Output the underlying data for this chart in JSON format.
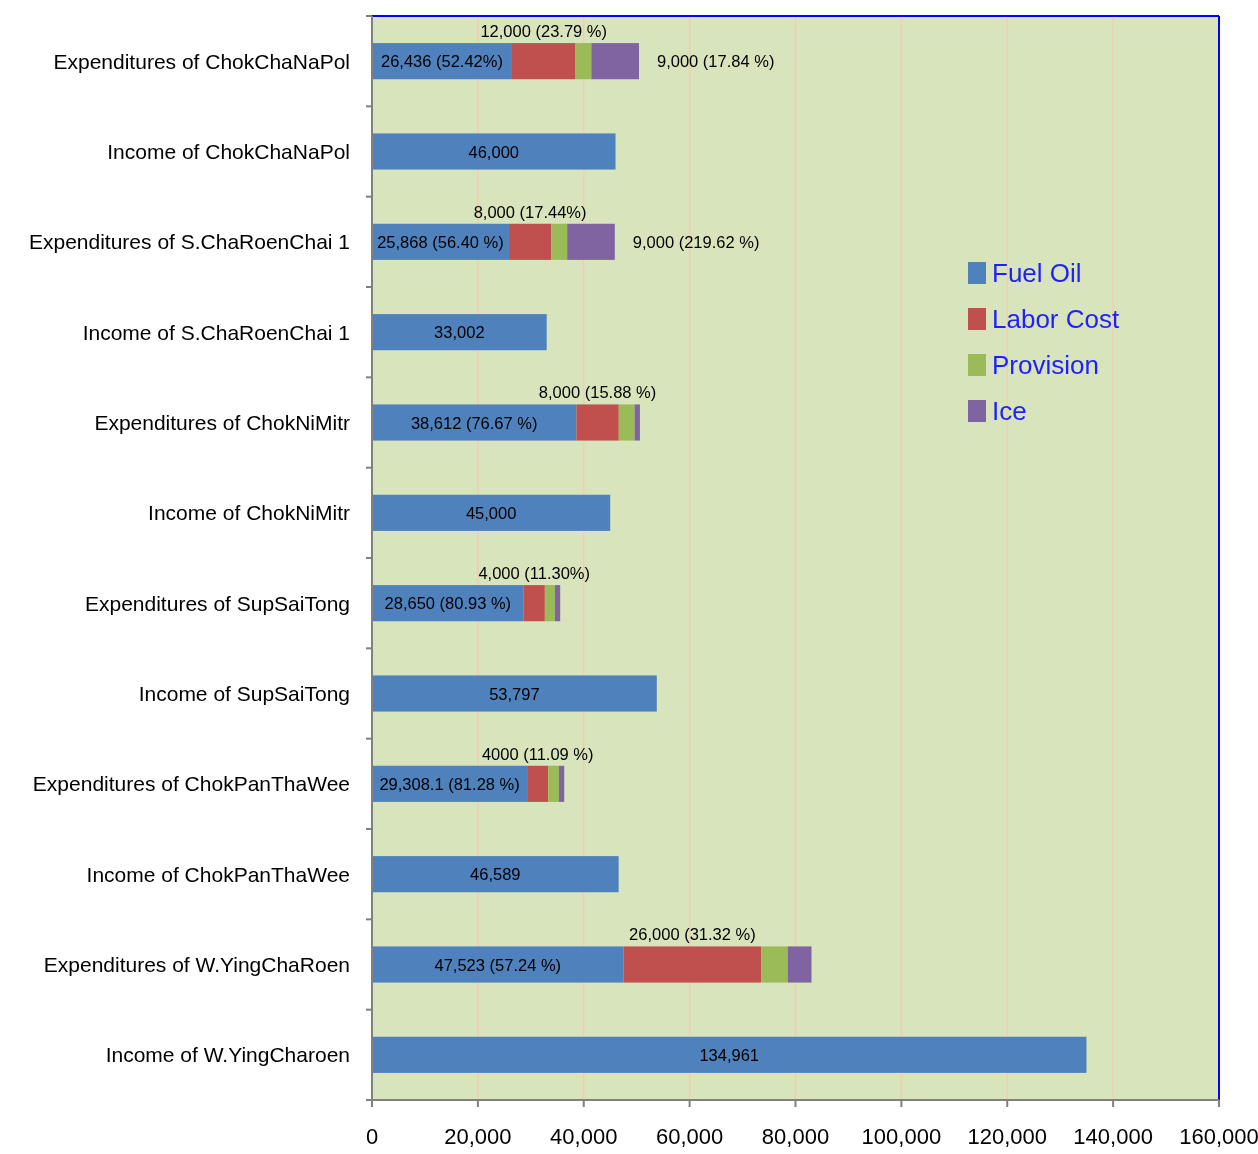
{
  "chart_data": {
    "type": "bar",
    "orientation": "horizontal",
    "stacked": true,
    "categories": [
      "Expenditures of ChokChaNaPol",
      "Income of ChokChaNaPol",
      "Expenditures of S.ChaRoenChai 1",
      "Income of S.ChaRoenChai 1",
      "Expenditures of ChokNiMitr",
      "Income of ChokNiMitr",
      "Expenditures of SupSaiTong",
      "Income of SupSaiTong",
      "Expenditures of ChokPanThaWee",
      "Income of ChokPanThaWee",
      "Expenditures of W.YingChaRoen",
      "Income of W.YingCharoen"
    ],
    "series": [
      {
        "name": "Fuel Oil",
        "color": "#4f81bd",
        "values": [
          26436,
          46000,
          25868,
          33002,
          38612,
          45000,
          28650,
          53797,
          29308.1,
          46589,
          47523,
          134961
        ],
        "value_labels": [
          "26,436 (52.42%)",
          "46,000",
          "25,868 (56.40 %)",
          "33,002",
          "38,612 (76.67 %)",
          "45,000",
          "28,650 (80.93 %)",
          "53,797",
          "29,308.1 (81.28 %)",
          "46,589",
          "47,523 (57.24 %)",
          "134,961"
        ]
      },
      {
        "name": "Labor Cost",
        "color": "#c0504d",
        "values": [
          12000,
          null,
          8000,
          null,
          8000,
          null,
          4000,
          null,
          4000,
          null,
          26000,
          null
        ],
        "value_labels": [
          "12,000 (23.79 %)",
          null,
          "8,000 (17.44%)",
          null,
          "8,000 (15.88 %)",
          null,
          "4,000 (11.30%)",
          null,
          "4000 (11.09 %)",
          null,
          "26,000 (31.32 %)",
          null
        ]
      },
      {
        "name": "Provision",
        "color": "#9bbb59",
        "values": [
          3000,
          null,
          3000,
          null,
          3000,
          null,
          1900,
          null,
          2000,
          null,
          5000,
          null
        ]
      },
      {
        "name": "Ice",
        "color": "#8064a2",
        "values": [
          9000,
          null,
          9000,
          null,
          1000,
          null,
          1000,
          null,
          1000,
          null,
          4500,
          null
        ],
        "value_labels": [
          "9,000 (17.84 %)",
          null,
          "9,000 (219.62 %)",
          null,
          null,
          null,
          null,
          null,
          null,
          null,
          null,
          null
        ]
      }
    ],
    "xlim": [
      0,
      160000
    ],
    "xticks": [
      {
        "value": 0,
        "label": "0"
      },
      {
        "value": 20000,
        "label": "20,000"
      },
      {
        "value": 40000,
        "label": "40,000"
      },
      {
        "value": 60000,
        "label": "60,000"
      },
      {
        "value": 80000,
        "label": "80,000"
      },
      {
        "value": 100000,
        "label": "100,000"
      },
      {
        "value": 120000,
        "label": "120,000"
      },
      {
        "value": 140000,
        "label": "140,000"
      },
      {
        "value": 160000,
        "label": "160,000"
      }
    ],
    "grid": "x",
    "legend": "right"
  }
}
